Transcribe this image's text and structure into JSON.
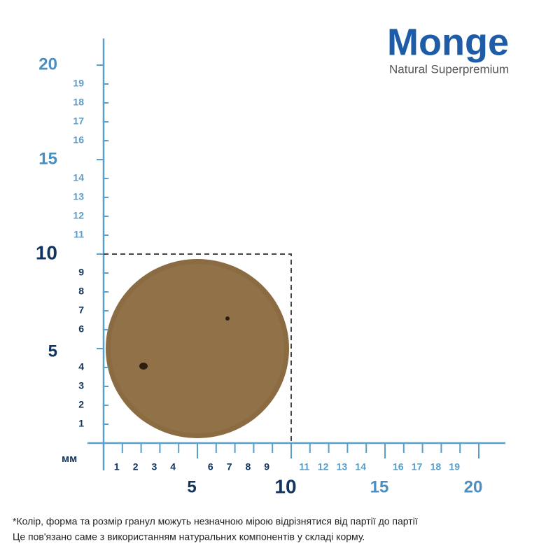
{
  "logo": {
    "brand": "Monge",
    "tagline": "Natural Superpremium"
  },
  "ruler": {
    "unit": "мм",
    "x_labels": [
      1,
      2,
      3,
      4,
      5,
      6,
      7,
      8,
      9,
      10,
      11,
      12,
      13,
      14,
      15,
      16,
      17,
      18,
      19,
      20
    ],
    "y_labels": [
      1,
      2,
      3,
      4,
      5,
      6,
      7,
      8,
      9,
      10,
      11,
      12,
      13,
      14,
      15,
      16,
      17,
      18,
      19,
      20
    ]
  },
  "footnote": [
    "*Колір, форма та розмір гранул можуть незначною мірою відрізнятися від партії до партії",
    "Це пов'язано саме з використанням натуральних компонентів у складі корму."
  ]
}
